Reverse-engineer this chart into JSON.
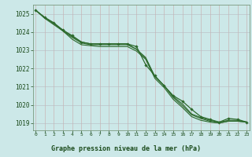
{
  "line1": [
    1025.2,
    1024.8,
    1024.45,
    1024.1,
    1023.75,
    1023.45,
    1023.35,
    1023.35,
    1023.35,
    1023.35,
    1023.35,
    1023.05,
    1022.55,
    1021.55,
    1021.05,
    1020.45,
    1020.05,
    1019.5,
    1019.3,
    1019.15,
    1019.05,
    1019.15,
    1019.15,
    1019.05
  ],
  "line2": [
    1025.2,
    1024.75,
    1024.4,
    1024.05,
    1023.6,
    1023.3,
    1023.25,
    1023.2,
    1023.2,
    1023.2,
    1023.2,
    1022.95,
    1022.5,
    1021.45,
    1020.95,
    1020.3,
    1019.85,
    1019.35,
    1019.15,
    1019.05,
    1019.0,
    1019.1,
    1019.1,
    1019.05
  ],
  "line3": [
    1025.2,
    1024.8,
    1024.5,
    1024.05,
    1023.7,
    1023.4,
    1023.3,
    1023.3,
    1023.3,
    1023.3,
    1023.3,
    1023.05,
    1022.6,
    1021.55,
    1021.05,
    1020.4,
    1019.95,
    1019.45,
    1019.25,
    1019.1,
    1019.0,
    1019.1,
    1019.1,
    1019.05
  ],
  "line_marked": [
    1025.2,
    1024.8,
    1024.5,
    1024.1,
    1023.8,
    1023.45,
    1023.35,
    1023.35,
    1023.35,
    1023.35,
    1023.35,
    1023.2,
    1022.2,
    1021.6,
    1021.05,
    1020.5,
    1020.2,
    1019.75,
    1019.35,
    1019.2,
    1019.05,
    1019.25,
    1019.2,
    1019.05
  ],
  "x": [
    0,
    1,
    2,
    3,
    4,
    5,
    6,
    7,
    8,
    9,
    10,
    11,
    12,
    13,
    14,
    15,
    16,
    17,
    18,
    19,
    20,
    21,
    22,
    23
  ],
  "ylim": [
    1018.6,
    1025.5
  ],
  "yticks": [
    1019,
    1020,
    1021,
    1022,
    1023,
    1024,
    1025
  ],
  "xtick_labels": [
    "0",
    "1",
    "2",
    "3",
    "4",
    "5",
    "6",
    "7",
    "8",
    "9",
    "10",
    "11",
    "12",
    "13",
    "14",
    "15",
    "16",
    "17",
    "18",
    "19",
    "20",
    "21",
    "22",
    "23"
  ],
  "line_color": "#2d6a2d",
  "bg_color": "#cce8e8",
  "grid_color_major": "#b8b8c8",
  "grid_color_minor": "#d8d8e8",
  "xlabel": "Graphe pression niveau de la mer (hPa)",
  "tick_color": "#1a4a1a",
  "spine_color": "#6a8a6a"
}
